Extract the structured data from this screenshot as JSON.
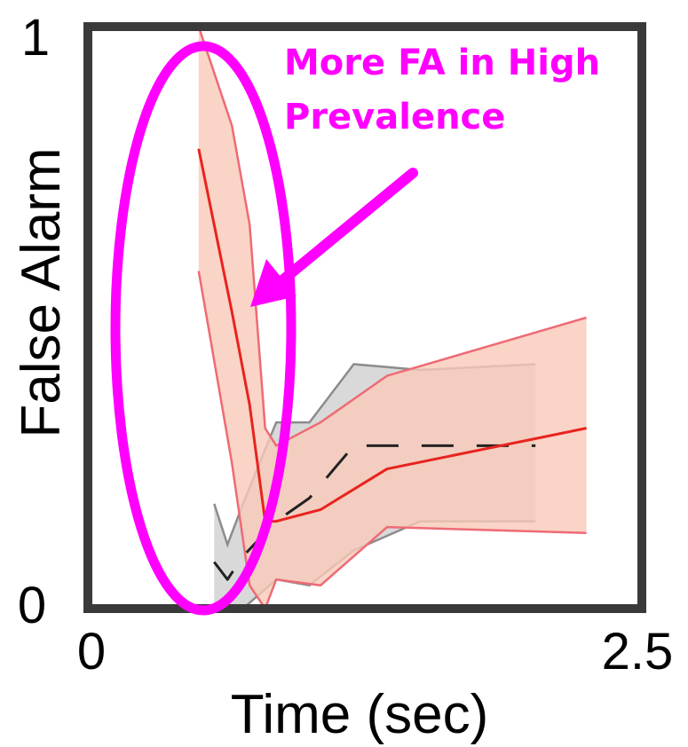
{
  "chart_data": {
    "type": "line",
    "xlabel": "Time (sec)",
    "ylabel": "False Alarm",
    "xlim": [
      0,
      2.5
    ],
    "ylim": [
      0,
      1
    ],
    "x_ticks": [
      "0",
      "2.5"
    ],
    "y_ticks": [
      "0",
      "1"
    ],
    "grid": false,
    "legend": "none",
    "series": [
      {
        "color": "#e8231e",
        "line_style": "solid",
        "band_fill": "#f9c9b8",
        "band_edge": "#ee6a75",
        "x": [
          0.5,
          0.65,
          0.73,
          0.8,
          0.85,
          1.05,
          1.35,
          2.25
        ],
        "y": [
          0.79,
          0.51,
          0.35,
          0.15,
          0.15,
          0.17,
          0.24,
          0.31
        ],
        "lower": [
          0.58,
          0.25,
          0.04,
          0.0,
          0.05,
          0.04,
          0.14,
          0.13
        ],
        "upper": [
          1.0,
          0.83,
          0.66,
          0.31,
          0.28,
          0.32,
          0.4,
          0.5
        ]
      },
      {
        "color": "#222222",
        "line_style": "dashed",
        "band_fill": "#cfcfcf",
        "band_edge": "#8c8c8c",
        "x": [
          0.57,
          0.63,
          0.7,
          0.85,
          1.0,
          1.2,
          1.5,
          2.02
        ],
        "y": [
          0.08,
          0.05,
          0.09,
          0.15,
          0.19,
          0.28,
          0.28,
          0.28
        ],
        "lower": [
          0.0,
          0.0,
          0.0,
          0.05,
          0.04,
          0.1,
          0.15,
          0.15
        ],
        "upper": [
          0.18,
          0.11,
          0.18,
          0.32,
          0.32,
          0.42,
          0.41,
          0.42
        ]
      }
    ],
    "annotations": [
      {
        "text_lines": [
          "More FA in High",
          "Prevalence"
        ],
        "color": "#ff00ff"
      }
    ]
  }
}
